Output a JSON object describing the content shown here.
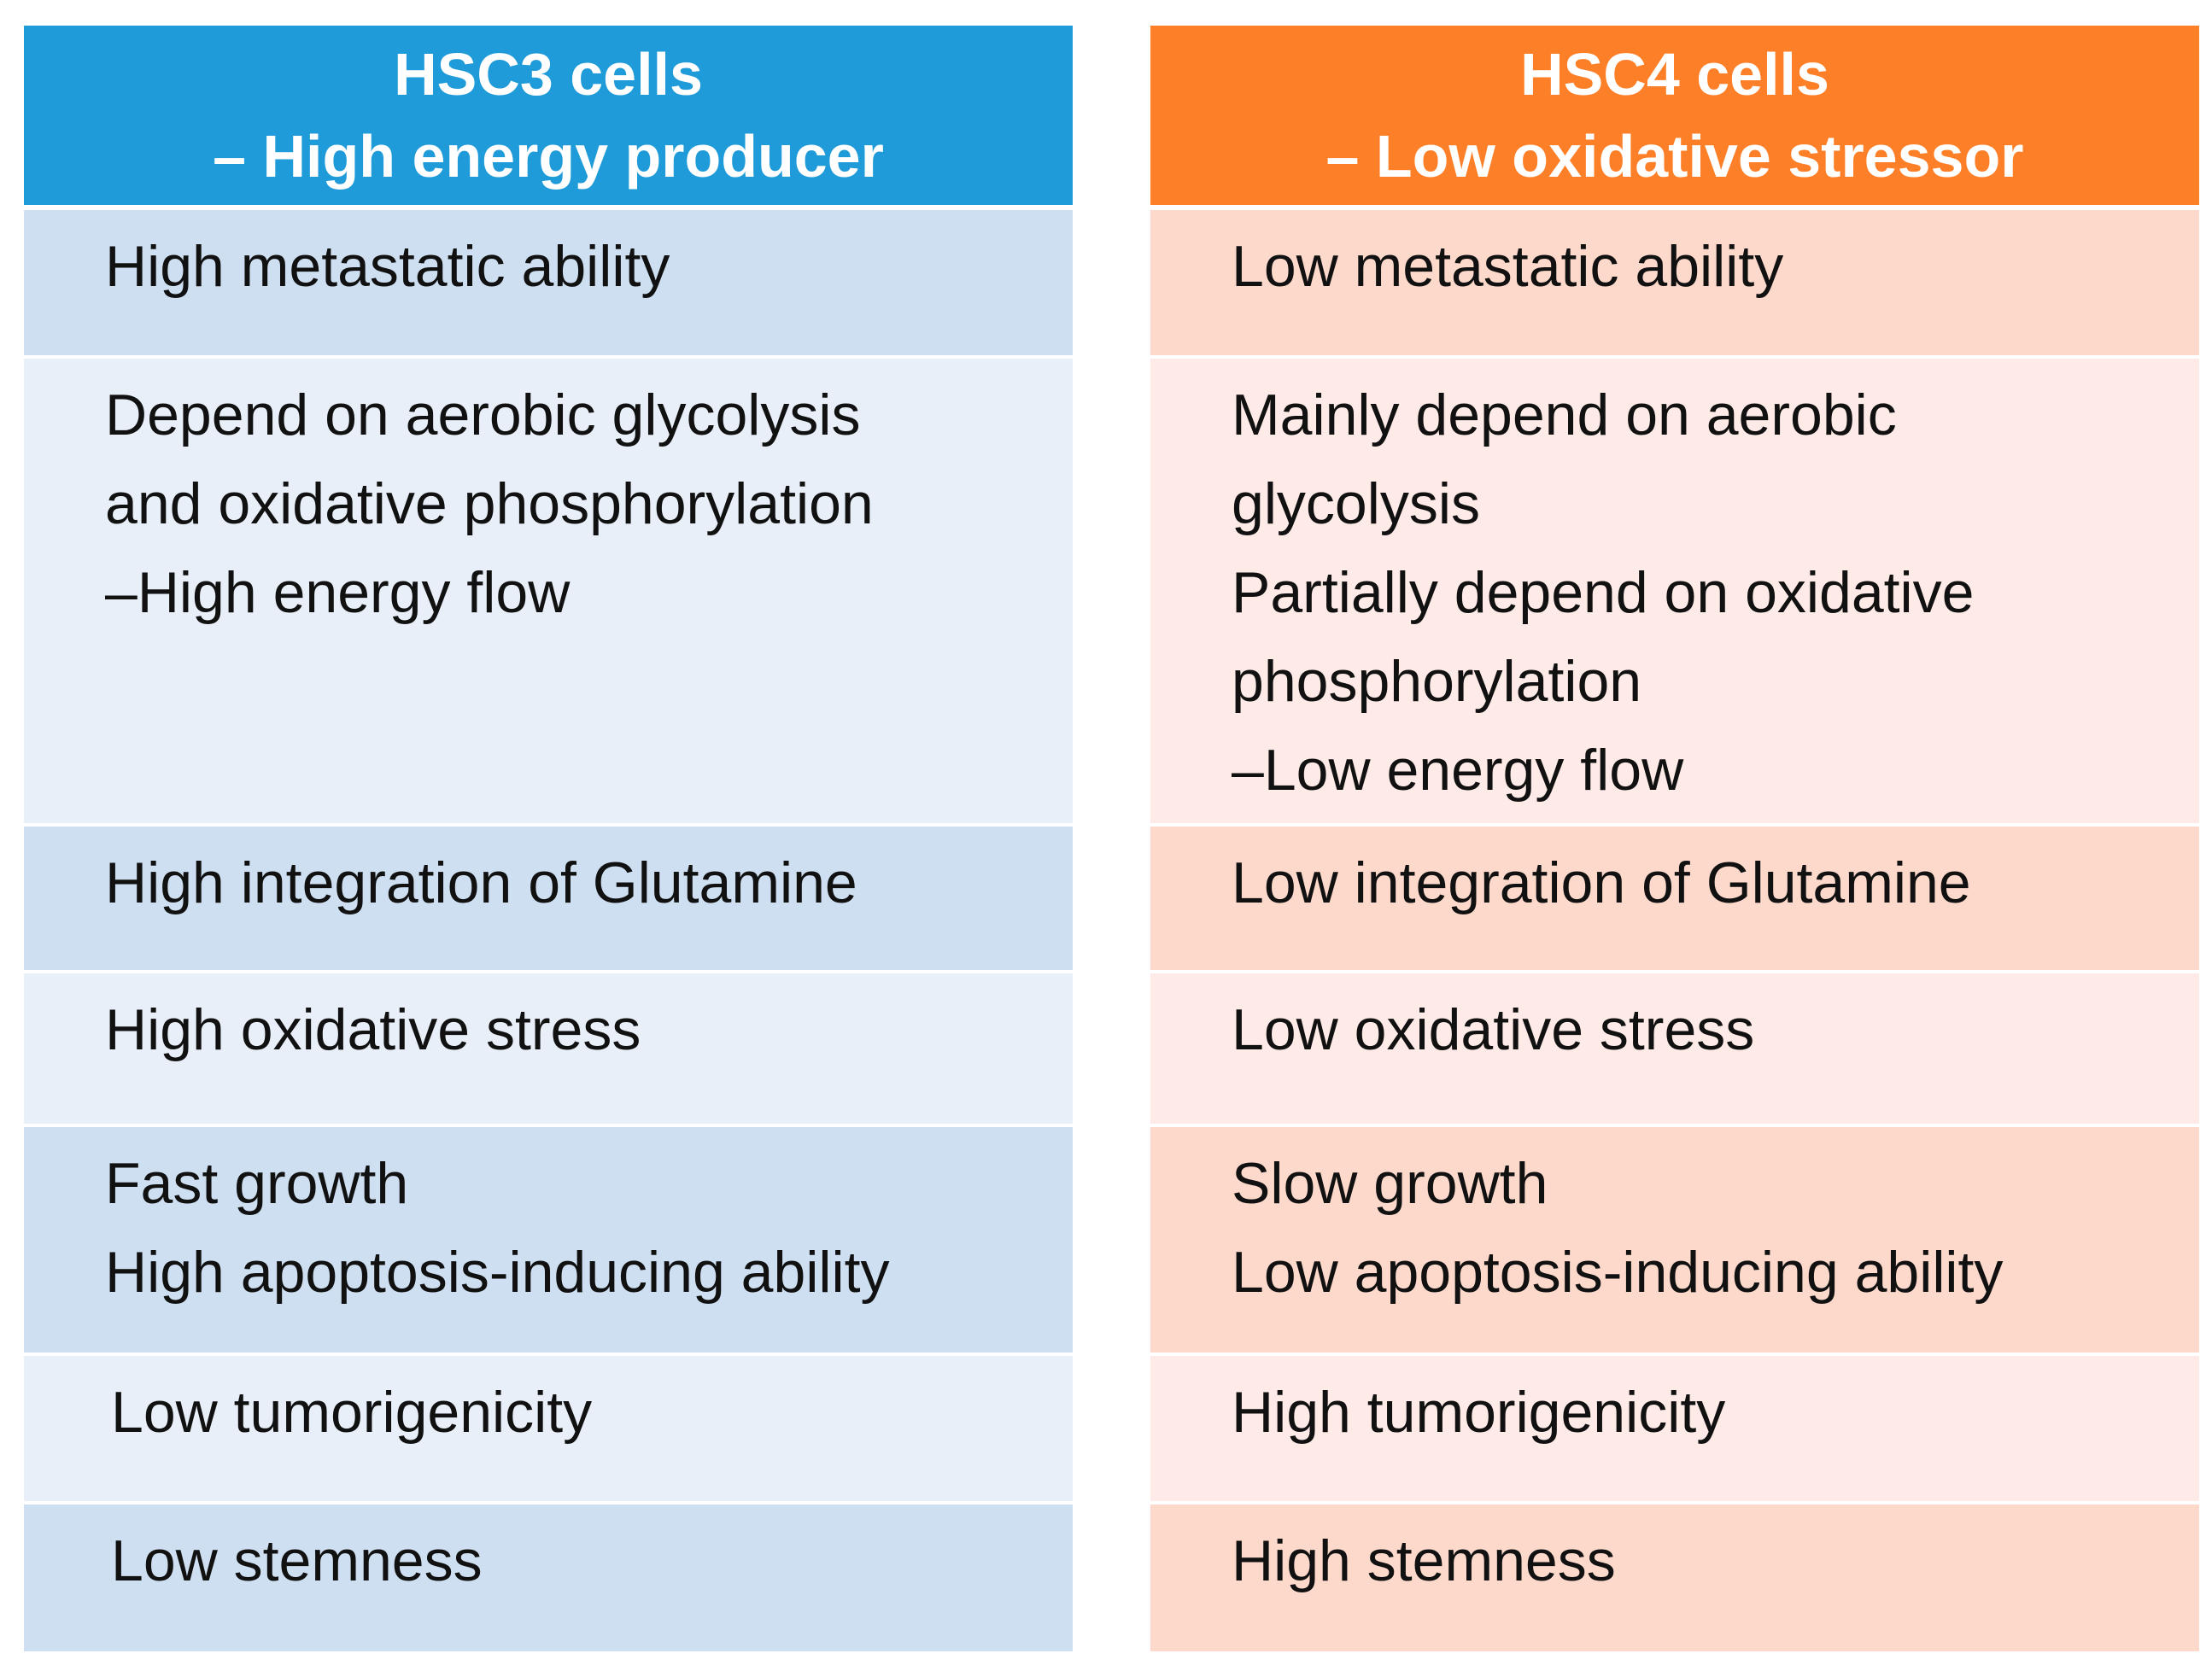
{
  "left": {
    "header": [
      "HSC3 cells",
      "– High energy producer"
    ],
    "color": "#1e9bd8",
    "rows": [
      [
        "High metastatic ability"
      ],
      [
        "Depend on aerobic glycolysis",
        "and oxidative phosphorylation",
        "–High energy flow"
      ],
      [
        "High integration of Glutamine"
      ],
      [
        "High oxidative stress"
      ],
      [
        "Fast growth",
        "High apoptosis-inducing ability"
      ],
      [
        "Low tumorigenicity"
      ],
      [
        "Low stemness"
      ]
    ]
  },
  "right": {
    "header": [
      "HSC4 cells",
      "– Low oxidative stressor"
    ],
    "color": "#fd7f28",
    "rows": [
      [
        "Low metastatic ability"
      ],
      [
        "Mainly depend on aerobic",
        "glycolysis",
        "Partially depend on oxidative",
        "phosphorylation",
        "–Low energy flow"
      ],
      [
        "Low integration of Glutamine"
      ],
      [
        "Low oxidative stress"
      ],
      [
        "Slow growth",
        "Low apoptosis-inducing ability"
      ],
      [
        "High tumorigenicity"
      ],
      [
        "High stemness"
      ]
    ]
  }
}
